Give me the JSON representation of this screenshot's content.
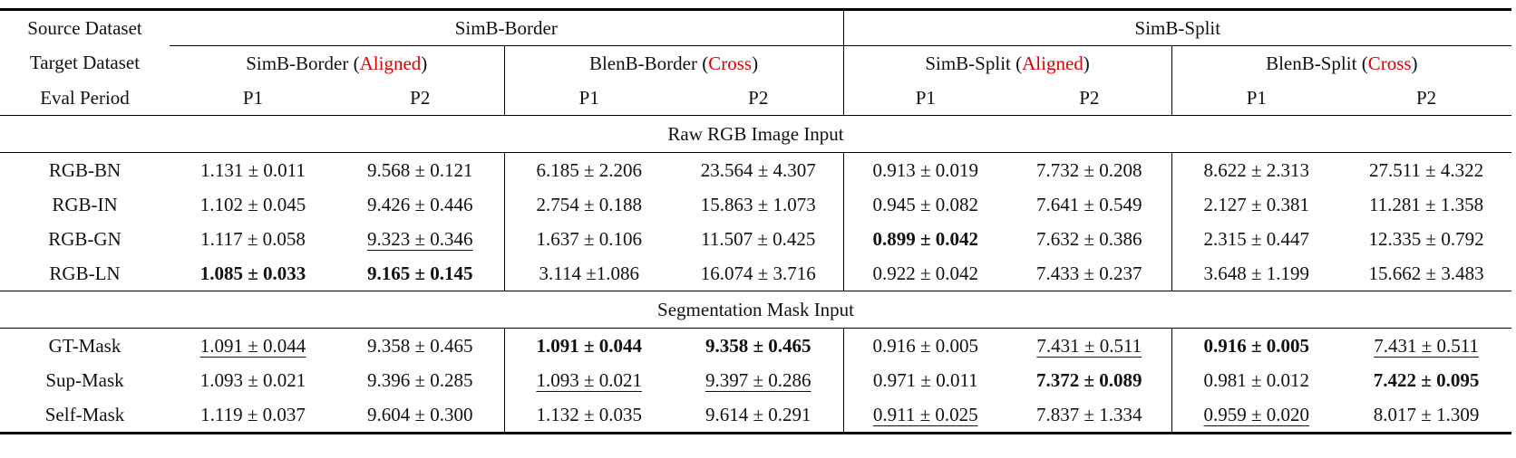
{
  "header": {
    "source_label": "Source Dataset",
    "target_label": "Target Dataset",
    "eval_label": "Eval Period",
    "sources": [
      "SimB-Border",
      "SimB-Split"
    ],
    "targets": [
      {
        "name": "SimB-Border",
        "tag": "Aligned"
      },
      {
        "name": "BlenB-Border",
        "tag": "Cross"
      },
      {
        "name": "SimB-Split",
        "tag": "Aligned"
      },
      {
        "name": "BlenB-Split",
        "tag": "Cross"
      }
    ],
    "periods": [
      "P1",
      "P2",
      "P1",
      "P2",
      "P1",
      "P2",
      "P1",
      "P2"
    ],
    "tag_color": "#e00000"
  },
  "sections": [
    {
      "title": "Raw RGB Image Input",
      "rows": [
        {
          "method": "RGB-BN",
          "cells": [
            {
              "v": "1.131 ± 0.011"
            },
            {
              "v": "9.568 ± 0.121"
            },
            {
              "v": "6.185 ± 2.206"
            },
            {
              "v": "23.564 ± 4.307"
            },
            {
              "v": "0.913 ± 0.019"
            },
            {
              "v": "7.732 ± 0.208"
            },
            {
              "v": "8.622 ± 2.313"
            },
            {
              "v": "27.511 ± 4.322"
            }
          ]
        },
        {
          "method": "RGB-IN",
          "cells": [
            {
              "v": "1.102 ± 0.045"
            },
            {
              "v": "9.426 ± 0.446"
            },
            {
              "v": "2.754 ± 0.188"
            },
            {
              "v": "15.863 ± 1.073"
            },
            {
              "v": "0.945 ± 0.082"
            },
            {
              "v": "7.641 ± 0.549"
            },
            {
              "v": "2.127 ± 0.381"
            },
            {
              "v": "11.281 ± 1.358"
            }
          ]
        },
        {
          "method": "RGB-GN",
          "cells": [
            {
              "v": "1.117 ± 0.058"
            },
            {
              "v": "9.323 ± 0.346",
              "s": "u"
            },
            {
              "v": "1.637 ± 0.106"
            },
            {
              "v": "11.507 ± 0.425"
            },
            {
              "v": "0.899 ± 0.042",
              "s": "b"
            },
            {
              "v": "7.632 ± 0.386"
            },
            {
              "v": "2.315 ± 0.447"
            },
            {
              "v": "12.335 ± 0.792"
            }
          ]
        },
        {
          "method": "RGB-LN",
          "cells": [
            {
              "v": "1.085 ± 0.033",
              "s": "b"
            },
            {
              "v": "9.165 ± 0.145",
              "s": "b"
            },
            {
              "v": "3.114 ±1.086"
            },
            {
              "v": "16.074 ± 3.716"
            },
            {
              "v": "0.922 ± 0.042"
            },
            {
              "v": "7.433 ± 0.237"
            },
            {
              "v": "3.648 ± 1.199"
            },
            {
              "v": "15.662 ± 3.483"
            }
          ]
        }
      ]
    },
    {
      "title": "Segmentation Mask Input",
      "rows": [
        {
          "method": "GT-Mask",
          "cells": [
            {
              "v": "1.091 ± 0.044",
              "s": "u"
            },
            {
              "v": "9.358 ± 0.465"
            },
            {
              "v": "1.091 ± 0.044",
              "s": "b"
            },
            {
              "v": "9.358 ± 0.465",
              "s": "b"
            },
            {
              "v": "0.916 ± 0.005"
            },
            {
              "v": "7.431 ± 0.511",
              "s": "u"
            },
            {
              "v": "0.916 ± 0.005",
              "s": "b"
            },
            {
              "v": "7.431 ± 0.511",
              "s": "u"
            }
          ]
        },
        {
          "method": "Sup-Mask",
          "cells": [
            {
              "v": "1.093 ± 0.021"
            },
            {
              "v": "9.396 ± 0.285"
            },
            {
              "v": "1.093 ± 0.021",
              "s": "u"
            },
            {
              "v": "9.397 ± 0.286",
              "s": "u"
            },
            {
              "v": "0.971 ± 0.011"
            },
            {
              "v": "7.372 ± 0.089",
              "s": "b"
            },
            {
              "v": "0.981 ± 0.012"
            },
            {
              "v": "7.422 ± 0.095",
              "s": "b"
            }
          ]
        },
        {
          "method": "Self-Mask",
          "cells": [
            {
              "v": "1.119 ± 0.037"
            },
            {
              "v": "9.604 ± 0.300"
            },
            {
              "v": "1.132 ± 0.035"
            },
            {
              "v": "9.614 ± 0.291"
            },
            {
              "v": "0.911 ± 0.025",
              "s": "u"
            },
            {
              "v": "7.837 ± 1.334"
            },
            {
              "v": "0.959 ± 0.020",
              "s": "u"
            },
            {
              "v": "8.017 ± 1.309"
            }
          ]
        }
      ]
    }
  ]
}
